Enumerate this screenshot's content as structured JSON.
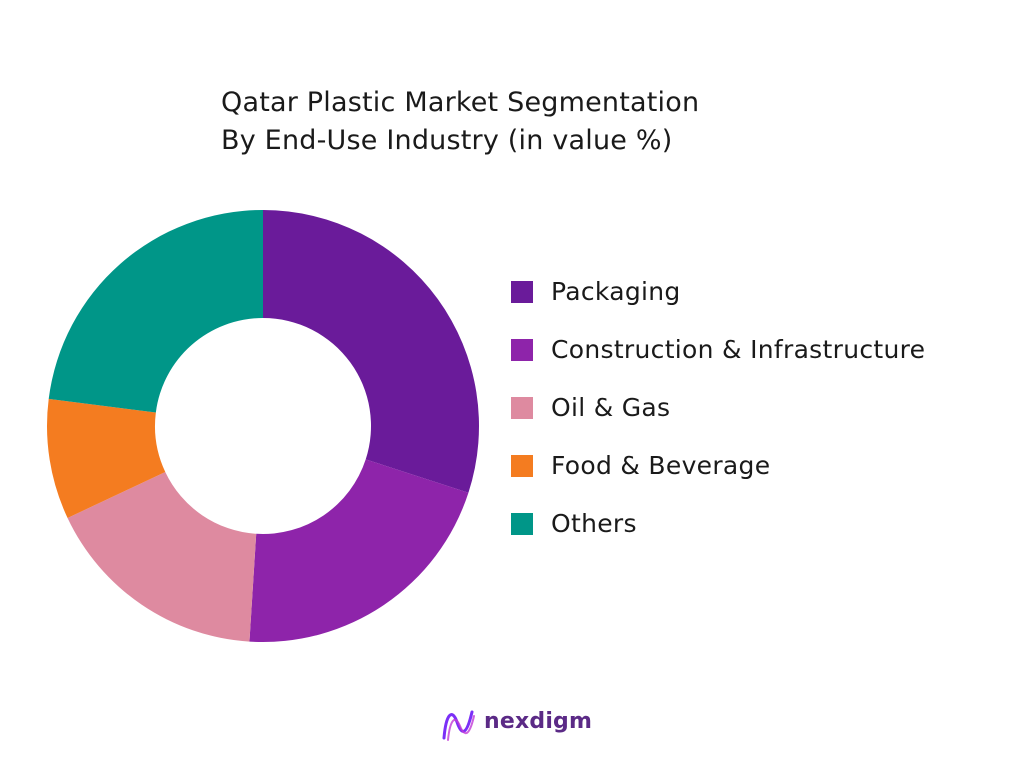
{
  "chart_data": {
    "type": "pie",
    "title": "Qatar Plastic Market Segmentation",
    "subtitle": "By End-Use Industry (in value %)",
    "categories": [
      "Packaging",
      "Construction & Infrastructure",
      "Oil & Gas",
      "Food & Beverage",
      "Others"
    ],
    "values": [
      30,
      21,
      17,
      9,
      23
    ],
    "colors": [
      "#6a1b9a",
      "#8e24aa",
      "#de8aa0",
      "#f47c20",
      "#009688"
    ],
    "donut": true,
    "legend_position": "right"
  },
  "brand": {
    "name": "nexdigm",
    "logo_icon": "nexdigm-logo-icon",
    "color": "#5b2a86"
  }
}
